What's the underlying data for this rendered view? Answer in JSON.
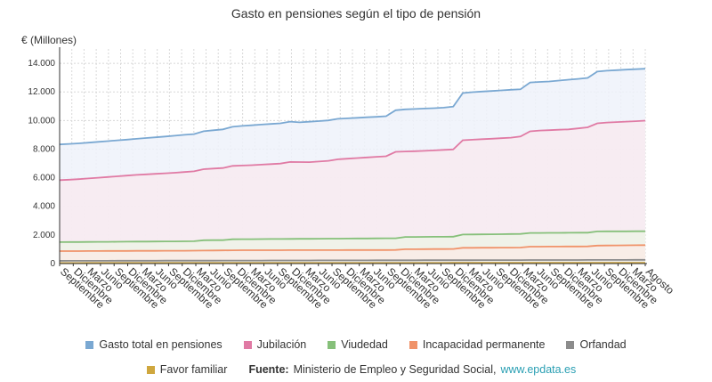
{
  "chart_data": {
    "type": "area",
    "title": "Gasto en pensiones según el tipo de pensión",
    "ylabel": "€ (Millones)",
    "xlabel": "",
    "ylim": [
      0,
      15000
    ],
    "yticks": [
      0,
      2000,
      4000,
      6000,
      8000,
      10000,
      12000,
      14000
    ],
    "ytick_labels": [
      "0",
      "2.000",
      "4.000",
      "6.000",
      "8.000",
      "10.000",
      "12.000",
      "14.000"
    ],
    "grid": true,
    "x_tick_labels": [
      "Septiembre",
      "Diciembre",
      "Marzo",
      "Junio",
      "Septiembre",
      "Diciembre",
      "Marzo",
      "Junio",
      "Septiembre",
      "Diciembre",
      "Marzo",
      "Junio",
      "Septiembre",
      "Diciembre",
      "Marzo",
      "Junio",
      "Septiembre",
      "Diciembre",
      "Marzo",
      "Junio",
      "Septiembre",
      "Diciembre",
      "Marzo",
      "Junio",
      "Septiembre",
      "Diciembre",
      "Marzo",
      "Junio",
      "Septiembre",
      "Diciembre",
      "Marzo",
      "Junio",
      "Septiembre",
      "Diciembre",
      "Marzo",
      "Junio",
      "Septiembre",
      "Diciembre",
      "Marzo",
      "Junio",
      "Septiembre",
      "Diciembre",
      "Marzo",
      "Agosto"
    ],
    "series": [
      {
        "name": "Gasto total en pensiones",
        "color": "#7aa8d2",
        "fill": "#eef2fa",
        "anchors": [
          [
            0,
            8330
          ],
          [
            2,
            8400
          ],
          [
            5,
            8560
          ],
          [
            8,
            8720
          ],
          [
            11,
            8880
          ],
          [
            13,
            9000
          ],
          [
            14,
            9050
          ],
          [
            15,
            9250
          ],
          [
            16,
            9320
          ],
          [
            17,
            9380
          ],
          [
            18,
            9560
          ],
          [
            19,
            9620
          ],
          [
            22,
            9760
          ],
          [
            23,
            9800
          ],
          [
            24,
            9920
          ],
          [
            25,
            9870
          ],
          [
            27,
            9960
          ],
          [
            28,
            10010
          ],
          [
            29,
            10120
          ],
          [
            30,
            10150
          ],
          [
            33,
            10260
          ],
          [
            34,
            10300
          ],
          [
            35,
            10720
          ],
          [
            36,
            10780
          ],
          [
            39,
            10860
          ],
          [
            40,
            10900
          ],
          [
            41,
            10970
          ],
          [
            42,
            11920
          ],
          [
            43,
            11980
          ],
          [
            47,
            12150
          ],
          [
            48,
            12180
          ],
          [
            49,
            12660
          ],
          [
            50,
            12700
          ],
          [
            51,
            12730
          ],
          [
            54,
            12910
          ],
          [
            55,
            12980
          ],
          [
            56,
            13420
          ],
          [
            57,
            13480
          ],
          [
            60,
            13590
          ],
          [
            61,
            13620
          ]
        ]
      },
      {
        "name": "Jubilación",
        "color": "#e07aa4",
        "fill": "#f8eaf0",
        "anchors": [
          [
            0,
            5830
          ],
          [
            2,
            5900
          ],
          [
            8,
            6200
          ],
          [
            12,
            6350
          ],
          [
            14,
            6450
          ],
          [
            15,
            6600
          ],
          [
            16,
            6640
          ],
          [
            17,
            6680
          ],
          [
            18,
            6830
          ],
          [
            20,
            6880
          ],
          [
            23,
            6990
          ],
          [
            24,
            7100
          ],
          [
            26,
            7090
          ],
          [
            28,
            7180
          ],
          [
            29,
            7290
          ],
          [
            33,
            7460
          ],
          [
            34,
            7500
          ],
          [
            35,
            7810
          ],
          [
            38,
            7880
          ],
          [
            41,
            7980
          ],
          [
            42,
            8620
          ],
          [
            47,
            8800
          ],
          [
            48,
            8880
          ],
          [
            49,
            9240
          ],
          [
            50,
            9300
          ],
          [
            53,
            9380
          ],
          [
            55,
            9520
          ],
          [
            56,
            9800
          ],
          [
            57,
            9860
          ],
          [
            60,
            9950
          ],
          [
            61,
            9990
          ]
        ]
      },
      {
        "name": "Viudedad",
        "color": "#86c07a",
        "fill": "#eef3e8",
        "anchors": [
          [
            0,
            1500
          ],
          [
            14,
            1560
          ],
          [
            15,
            1630
          ],
          [
            17,
            1640
          ],
          [
            18,
            1700
          ],
          [
            28,
            1740
          ],
          [
            35,
            1770
          ],
          [
            36,
            1860
          ],
          [
            41,
            1880
          ],
          [
            42,
            2030
          ],
          [
            48,
            2070
          ],
          [
            49,
            2140
          ],
          [
            55,
            2160
          ],
          [
            56,
            2250
          ],
          [
            61,
            2260
          ]
        ]
      },
      {
        "name": "Incapacidad permanente",
        "color": "#f0936a",
        "fill": "#f9ece6",
        "anchors": [
          [
            0,
            870
          ],
          [
            14,
            900
          ],
          [
            18,
            930
          ],
          [
            35,
            950
          ],
          [
            36,
            1000
          ],
          [
            41,
            1020
          ],
          [
            42,
            1100
          ],
          [
            48,
            1120
          ],
          [
            49,
            1180
          ],
          [
            55,
            1200
          ],
          [
            56,
            1260
          ],
          [
            61,
            1290
          ]
        ]
      },
      {
        "name": "Orfandad",
        "color": "#8c8c8c",
        "fill": "#eeeeee",
        "anchors": [
          [
            0,
            190
          ],
          [
            61,
            260
          ]
        ]
      },
      {
        "name": "Favor familiar",
        "color": "#cfa73e",
        "fill": "#f7f0de",
        "anchors": [
          [
            0,
            40
          ],
          [
            61,
            50
          ]
        ]
      }
    ]
  },
  "legend": {
    "source_label": "Fuente:",
    "source_text": "Ministerio de Empleo y Seguridad Social,",
    "source_link": "www.epdata.es"
  }
}
